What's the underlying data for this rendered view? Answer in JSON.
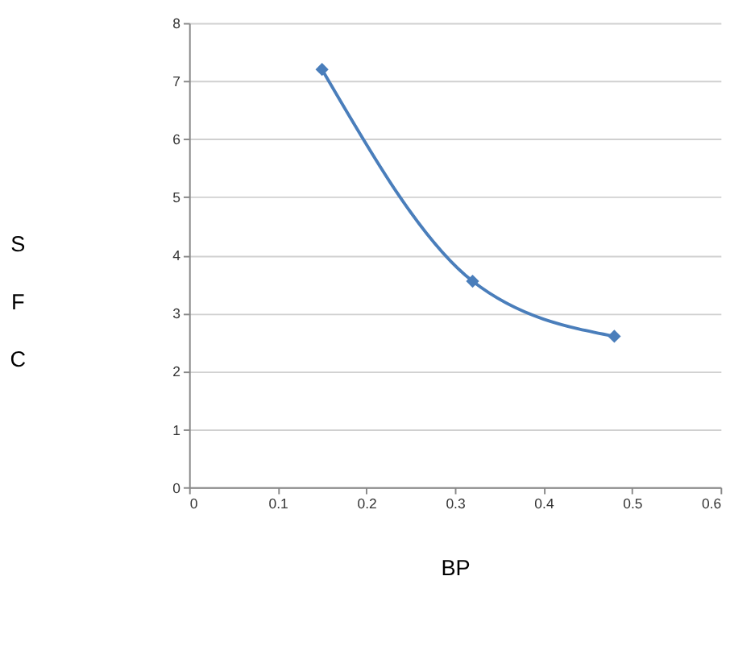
{
  "chart_data": {
    "type": "line",
    "xlabel": "BP",
    "ylabel": "SFC",
    "x": [
      0.15,
      0.32,
      0.48
    ],
    "series": [
      {
        "color": "#4a7ebb",
        "values": [
          7.2,
          3.55,
          2.6
        ]
      }
    ],
    "xlim": [
      0,
      0.6
    ],
    "xticks": [
      {
        "value": 0,
        "label": "0"
      },
      0.1,
      0.2,
      0.3,
      0.4,
      0.5,
      0.6
    ],
    "ylim": [
      0,
      8
    ],
    "yticks": [
      0,
      1,
      2,
      3,
      4,
      5,
      6,
      7,
      8
    ],
    "grid": "y",
    "marker": "diamond",
    "line_style": "solid",
    "legend": false
  }
}
